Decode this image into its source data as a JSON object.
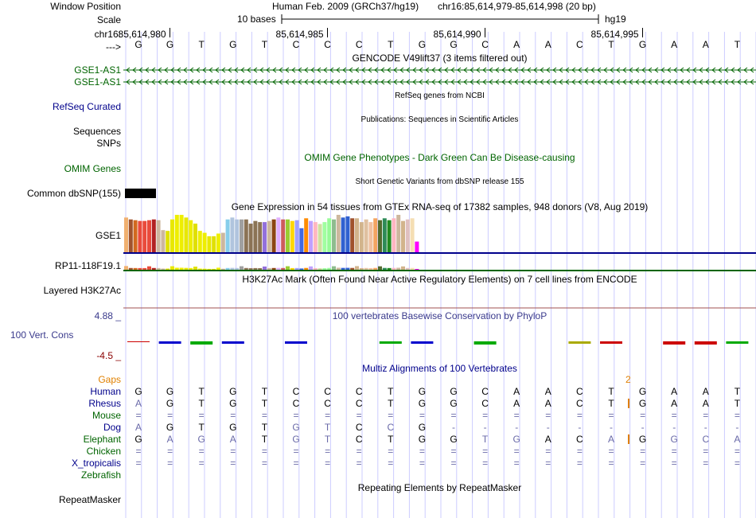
{
  "header": {
    "window_position_label": "Window Position",
    "scale_label": "Scale",
    "chrom_label": "chr16:",
    "arrow_label": "--->",
    "assembly": "Human Feb. 2009 (GRCh37/hg19)",
    "position": "chr16:85,614,979-85,614,998 (20 bp)",
    "scale_text": "10 bases",
    "db_label": "hg19",
    "coords": [
      "85,614,980",
      "85,614,985",
      "85,614,990",
      "85,614,995"
    ]
  },
  "bases": [
    "G",
    "G",
    "T",
    "G",
    "T",
    "C",
    "C",
    "C",
    "T",
    "G",
    "G",
    "C",
    "A",
    "A",
    "C",
    "T",
    "G",
    "A",
    "A",
    "T"
  ],
  "tracks": {
    "gencode_title": "GENCODE V49lift37 (3 items filtered out)",
    "gse1_as1_a": "GSE1-AS1",
    "gse1_as1_b": "GSE1-AS1",
    "refseq_label": "RefSeq Curated",
    "refseq_title": "RefSeq genes from NCBI",
    "sequences_label": "Sequences",
    "sequences_title": "Publications: Sequences in Scientific Articles",
    "snps_label": "SNPs",
    "omim_title": "OMIM Gene Phenotypes - Dark Green Can Be Disease-causing",
    "omim_label": "OMIM Genes",
    "dbsnp_title": "Short Genetic Variants from dbSNP release 155",
    "dbsnp_label": "Common dbSNP(155)",
    "gtex_title": "Gene Expression in 54 tissues from GTEx RNA-seq of 17382 samples, 948 donors (V8, Aug 2019)",
    "gse1_label": "GSE1",
    "rp11_label": "RP11-118F19.1",
    "h3k27ac_title": "H3K27Ac Mark (Often Found Near Active Regulatory Elements) on 7 cell lines from ENCODE",
    "h3k27ac_label": "Layered H3K27Ac",
    "phylop_max": "4.88 _",
    "phylop_title": "100 vertebrates Basewise Conservation by PhyloP",
    "phylop_label": "100 Vert. Cons",
    "phylop_min": "-4.5 _",
    "multiz_title": "Multiz Alignments of 100 Vertebrates",
    "gaps_label": "Gaps",
    "gap_count": "2",
    "repeat_title": "Repeating Elements by RepeatMasker",
    "repeat_label": "RepeatMasker"
  },
  "gtex_values": [
    0.93,
    0.88,
    0.86,
    0.84,
    0.84,
    0.86,
    0.88,
    0.86,
    0.6,
    0.58,
    0.88,
    1.0,
    1.0,
    0.93,
    0.86,
    0.77,
    0.58,
    0.53,
    0.44,
    0.44,
    0.51,
    0.53,
    0.88,
    0.93,
    0.88,
    0.88,
    0.88,
    0.77,
    0.84,
    0.81,
    0.81,
    0.84,
    0.88,
    0.93,
    0.88,
    0.88,
    0.84,
    0.86,
    0.65,
    0.91,
    0.84,
    0.81,
    0.76,
    0.81,
    0.91,
    0.88,
    1.0,
    0.93,
    0.96,
    0.91,
    0.91,
    0.81,
    0.88,
    0.81,
    0.91,
    0.86,
    0.91,
    0.86,
    0.91,
    1.0,
    0.84,
    0.88,
    0.91,
    0.3
  ],
  "gtex_colors": [
    "#f0b070",
    "#a0522d",
    "#d2691e",
    "#e94b3c",
    "#e94b3c",
    "#e94b3c",
    "#b22222",
    "#cdb79e",
    "#cdb79e",
    "#e0e000",
    "#e8e800",
    "#eeee00",
    "#eeee00",
    "#e8e800",
    "#eeee00",
    "#e0e000",
    "#eeee00",
    "#eeee00",
    "#e8e800",
    "#e0e000",
    "#eeee00",
    "#cdb79e",
    "#87ceeb",
    "#b0c4de",
    "#b0c4de",
    "#a0a0a0",
    "#8b7355",
    "#8b7355",
    "#8b7355",
    "#8b7355",
    "#9370db",
    "#cdb79e",
    "#8b4513",
    "#e0b0ff",
    "#cd5c5c",
    "#9acd32",
    "#ffd700",
    "#a0a0ff",
    "#4169e1",
    "#ff8c00",
    "#c0a0ff",
    "#ffb6c1",
    "#d0e0a0",
    "#a0ffa0",
    "#98fb98",
    "#8fbc8f",
    "#cdb79e",
    "#3060d0",
    "#3060d0",
    "#a0522d",
    "#d2b48c",
    "#d2b48c",
    "#e0c0a0",
    "#f0c0a0",
    "#f4a460",
    "#556b2f",
    "#2e8b57",
    "#228b22",
    "#ffb6c1",
    "#cdb79e",
    "#d2b48c",
    "#e0c0c0",
    "#f5deb3",
    "#ff00ff"
  ],
  "multiz": {
    "species": [
      "Human",
      "Rhesus",
      "Mouse",
      "Dog",
      "Elephant",
      "Chicken",
      "X_tropicalis",
      "Zebrafish"
    ],
    "rows": [
      [
        "G",
        "G",
        "T",
        "G",
        "T",
        "C",
        "C",
        "C",
        "T",
        "G",
        "G",
        "C",
        "A",
        "A",
        "C",
        "T",
        "G",
        "A",
        "A",
        "T"
      ],
      [
        "A",
        "G",
        "T",
        "G",
        "T",
        "C",
        "C",
        "C",
        "T",
        "G",
        "G",
        "C",
        "A",
        "A",
        "C",
        "T",
        "G",
        "A",
        "A",
        "T"
      ],
      [
        "=",
        "=",
        "=",
        "=",
        "=",
        "=",
        "=",
        "=",
        "=",
        "=",
        "=",
        "=",
        "=",
        "=",
        "=",
        "=",
        "=",
        "=",
        "=",
        "="
      ],
      [
        "A",
        "G",
        "T",
        "G",
        "T",
        "G",
        "T",
        "C",
        "C",
        "G",
        "-",
        "-",
        "-",
        "-",
        "-",
        "-",
        "-",
        "-",
        "-",
        "-"
      ],
      [
        "G",
        "A",
        "G",
        "A",
        "T",
        "G",
        "T",
        "C",
        "T",
        "G",
        "G",
        "T",
        "G",
        "A",
        "C",
        "A",
        "G",
        "G",
        "C",
        "A"
      ],
      [
        "=",
        "=",
        "=",
        "=",
        "=",
        "=",
        "=",
        "=",
        "=",
        "=",
        "=",
        "=",
        "=",
        "=",
        "=",
        "=",
        "=",
        "=",
        "=",
        "="
      ],
      [
        "=",
        "=",
        "=",
        "=",
        "=",
        "=",
        "=",
        "=",
        "=",
        "=",
        "=",
        "=",
        "=",
        "=",
        "=",
        "=",
        "=",
        "=",
        "=",
        "="
      ],
      [
        "",
        "",
        "",
        "",
        "",
        "",
        "",
        "",
        "",
        "",
        "",
        "",
        "",
        "",
        "",
        "",
        "",
        "",
        "",
        ""
      ]
    ]
  },
  "colors": {
    "gene_green": "#006400",
    "track_blue": "#00008b",
    "grid_blue": "#ccccff",
    "gaps_orange": "#e08000",
    "phylop_red": "#8b0000",
    "phylop_blue": "#0000cd",
    "label_blue": "#3a3a8c"
  }
}
